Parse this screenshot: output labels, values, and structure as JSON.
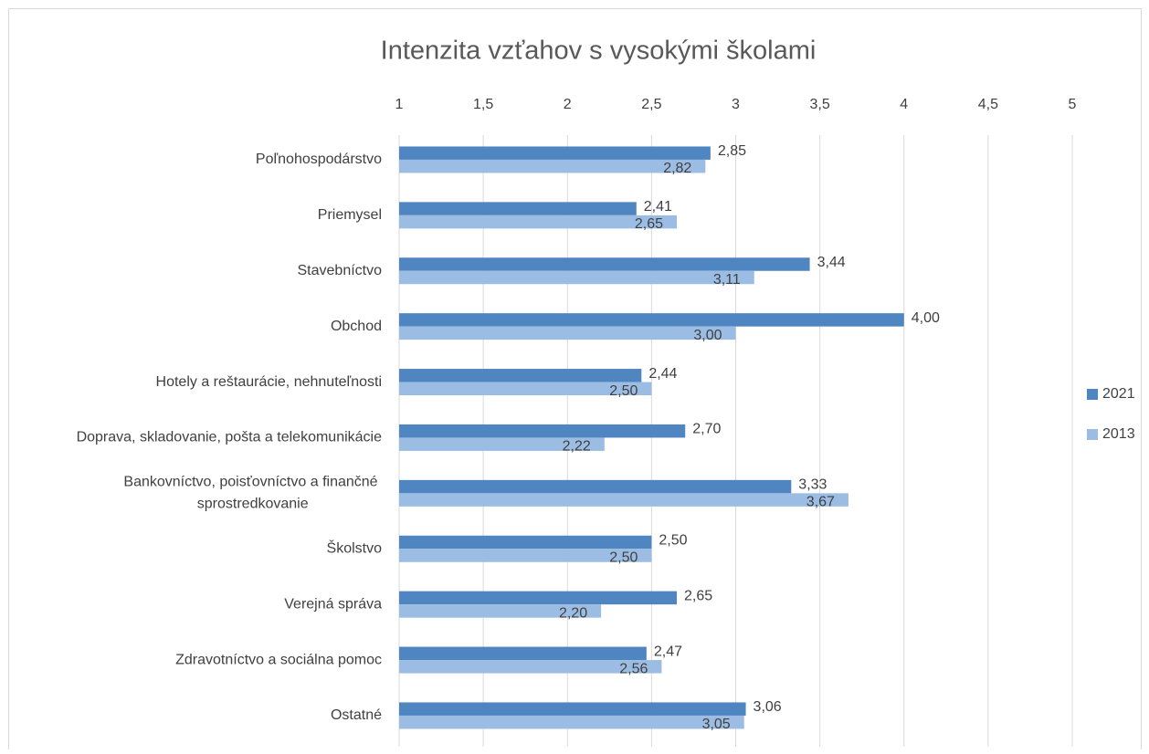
{
  "chart_data": {
    "type": "bar",
    "orientation": "horizontal",
    "title": "Intenzita vzťahov s vysokými školami",
    "categories": [
      "Poľnohospodárstvo",
      "Priemysel",
      "Stavebníctvo",
      "Obchod",
      "Hotely a reštaurácie, nehnuteľnosti",
      "Doprava, skladovanie, pošta a telekomunikácie",
      "Bankovníctvo, poisťovníctvo a finančné sprostredkovanie",
      "Školstvo",
      "Verejná správa",
      "Zdravotníctvo a sociálna pomoc",
      "Ostatné"
    ],
    "series": [
      {
        "name": "2021",
        "color": "#4f86c2",
        "values": [
          2.85,
          2.41,
          3.44,
          4.0,
          2.44,
          2.7,
          3.33,
          2.5,
          2.65,
          2.47,
          3.06
        ],
        "value_labels": [
          "2,85",
          "2,41",
          "3,44",
          "4,00",
          "2,44",
          "2,70",
          "3,33",
          "2,50",
          "2,65",
          "2,47",
          "3,06"
        ]
      },
      {
        "name": "2013",
        "color": "#9bbde3",
        "values": [
          2.82,
          2.65,
          3.11,
          3.0,
          2.5,
          2.22,
          3.67,
          2.5,
          2.2,
          2.56,
          3.05
        ],
        "value_labels": [
          "2,82",
          "2,65",
          "3,11",
          "3,00",
          "2,50",
          "2,22",
          "3,67",
          "2,50",
          "2,20",
          "2,56",
          "3,05"
        ]
      }
    ],
    "xlim": [
      1,
      5
    ],
    "xticks": [
      1,
      {
        "value": 1.5,
        "label": "1,5"
      },
      2,
      {
        "value": 2.5,
        "label": "2,5"
      },
      3,
      {
        "value": 3.5,
        "label": "3,5"
      },
      4,
      {
        "value": 4.5,
        "label": "4,5"
      },
      5
    ],
    "grid": true,
    "legend": "right"
  }
}
